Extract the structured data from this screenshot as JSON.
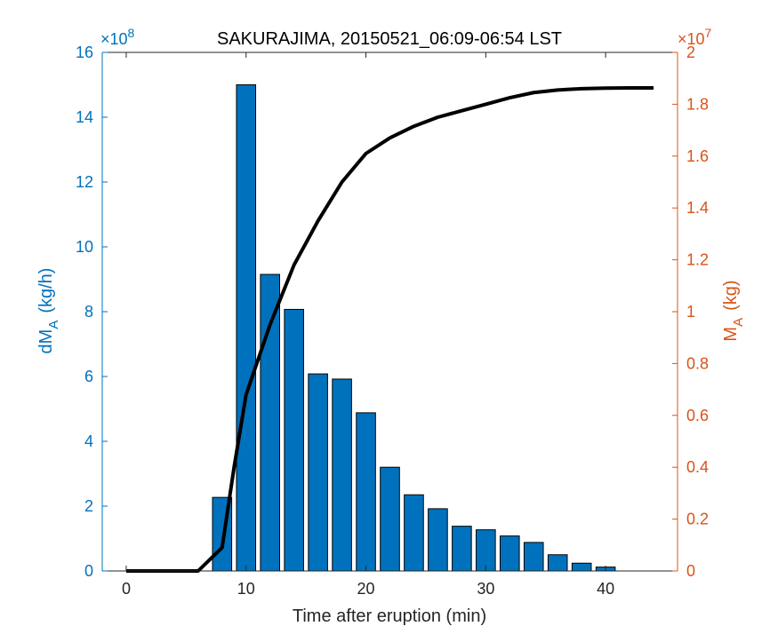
{
  "chart_data": {
    "type": "bar+line",
    "title": "SAKURAJIMA, 20150521_06:09-06:54 LST",
    "xlabel": "Time after eruption (min)",
    "xlim": [
      -2,
      46
    ],
    "xticks": [
      0,
      10,
      20,
      30,
      40
    ],
    "left_axis": {
      "label_main": "dM",
      "label_sub": "A",
      "label_unit": "(kg/h)",
      "ylim": [
        0,
        16
      ],
      "ticks": [
        0,
        2,
        4,
        6,
        8,
        10,
        12,
        14,
        16
      ],
      "multiplier_base": "×10",
      "multiplier_exp": "8",
      "color": "#0072BD"
    },
    "right_axis": {
      "label_main": "M",
      "label_sub": "A",
      "label_unit": "(kg)",
      "ylim": [
        0,
        2
      ],
      "ticks": [
        0,
        0.2,
        0.4,
        0.6,
        0.8,
        1,
        1.2,
        1.4,
        1.6,
        1.8,
        2
      ],
      "multiplier_base": "×10",
      "multiplier_exp": "7",
      "color": "#D95319"
    },
    "bars": {
      "name": "dM_A",
      "color": "#0072BD",
      "x": [
        8,
        10,
        12,
        14,
        16,
        18,
        20,
        22,
        24,
        26,
        28,
        30,
        32,
        34,
        36,
        38,
        40
      ],
      "values": [
        2.27,
        15.0,
        9.15,
        8.07,
        6.08,
        5.92,
        4.88,
        3.2,
        2.35,
        1.92,
        1.38,
        1.27,
        1.08,
        0.88,
        0.5,
        0.24,
        0.12
      ]
    },
    "line": {
      "name": "M_A",
      "color": "#000000",
      "x": [
        0,
        6,
        8,
        9,
        10,
        12,
        14,
        16,
        18,
        20,
        22,
        24,
        26,
        28,
        30,
        32,
        34,
        36,
        38,
        40,
        42,
        44
      ],
      "values": [
        0,
        0,
        0.09,
        0.4,
        0.68,
        0.95,
        1.18,
        1.35,
        1.5,
        1.61,
        1.67,
        1.715,
        1.75,
        1.775,
        1.8,
        1.825,
        1.845,
        1.855,
        1.86,
        1.862,
        1.863,
        1.863
      ]
    }
  }
}
